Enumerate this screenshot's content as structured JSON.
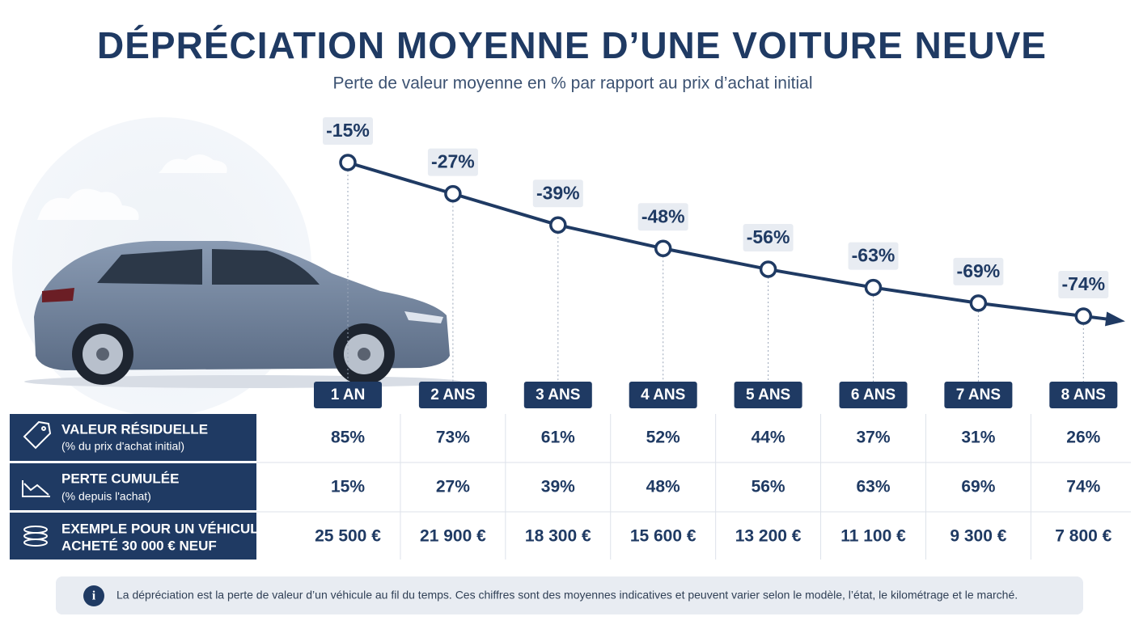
{
  "chart_data": {
    "type": "line",
    "title": "DÉPRÉCIATION MOYENNE D’UNE VOITURE NEUVE",
    "subtitle": "Perte de valeur moyenne en % par rapport au prix d’achat initial",
    "categories": [
      "1 AN",
      "2 ANS",
      "3 ANS",
      "4 ANS",
      "5 ANS",
      "6 ANS",
      "7 ANS",
      "8 ANS"
    ],
    "values": [
      -15,
      -27,
      -39,
      -48,
      -56,
      -63,
      -69,
      -74
    ],
    "value_labels": [
      "-15%",
      "-27%",
      "-39%",
      "-48%",
      "-56%",
      "-63%",
      "-69%",
      "-74%"
    ],
    "color": "#1f3a63"
  },
  "table": {
    "rows": [
      {
        "lines": [
          "VALEUR RÉSIDUELLE",
          "(% du prix d'achat initial)"
        ],
        "cells": [
          "85%",
          "73%",
          "61%",
          "52%",
          "44%",
          "37%",
          "31%",
          "26%"
        ]
      },
      {
        "lines": [
          "PERTE CUMULÉE",
          "(% depuis l'achat)"
        ],
        "cells": [
          "15%",
          "27%",
          "39%",
          "48%",
          "56%",
          "63%",
          "69%",
          "74%"
        ]
      },
      {
        "lines": [
          "EXEMPLE POUR UN VÉHICULE",
          "ACHETÉ 30 000 € NEUF"
        ],
        "cells": [
          "25 500 €",
          "21 900 €",
          "18 300 €",
          "15 600 €",
          "13 200 €",
          "11 100 €",
          "9 300 €",
          "7 800 €"
        ]
      }
    ]
  },
  "footnote": "La dépréciation est la perte de valeur d’un véhicule au fil du temps. Ces chiffres sont des moyennes indicatives et peuvent varier selon le modèle, l’état, le kilométrage et le marché."
}
